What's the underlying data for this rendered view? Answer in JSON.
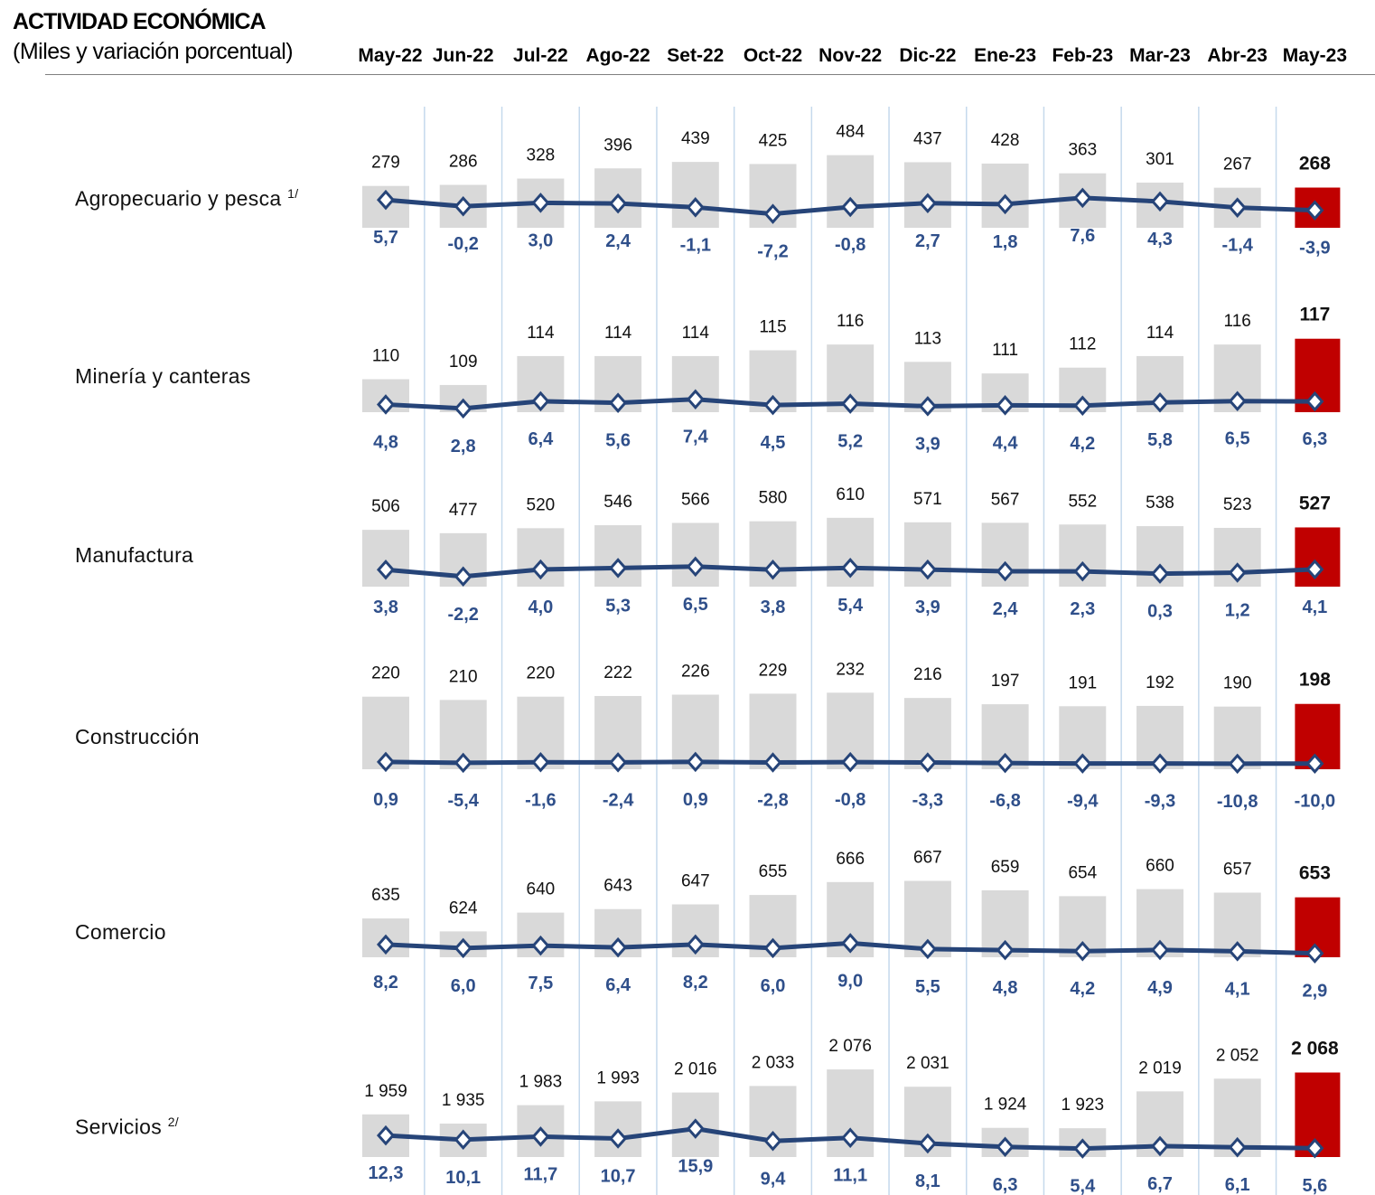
{
  "header": {
    "title": "ACTIVIDAD ECONÓMICA",
    "subtitle": "(Miles y variación porcentual)"
  },
  "chart_data": {
    "type": "bar+line",
    "title": "ACTIVIDAD ECONÓMICA",
    "subtitle": "(Miles y variación porcentual)",
    "categories": [
      "May-22",
      "Jun-22",
      "Jul-22",
      "Ago-22",
      "Set-22",
      "Oct-22",
      "Nov-22",
      "Dic-22",
      "Ene-23",
      "Feb-23",
      "Mar-23",
      "Abr-23",
      "May-23"
    ],
    "highlight_category": "May-23",
    "colors": {
      "bar": "#d9d9d9",
      "highlight_bar": "#c00000",
      "line": "#264478",
      "label_pct": "#2f4f8a",
      "grid": "#c5d9ec"
    },
    "series": [
      {
        "name": "Agropecuario y pesca",
        "note": "1/",
        "values": [
          279,
          286,
          328,
          396,
          439,
          425,
          484,
          437,
          428,
          363,
          301,
          267,
          268
        ],
        "values_label": [
          "279",
          "286",
          "328",
          "396",
          "439",
          "425",
          "484",
          "437",
          "428",
          "363",
          "301",
          "267",
          "268"
        ],
        "pct": [
          5.7,
          -0.2,
          3.0,
          2.4,
          -1.1,
          -7.2,
          -0.8,
          2.7,
          1.8,
          7.6,
          4.3,
          -1.4,
          -3.9
        ],
        "pct_label": [
          "5,7",
          "-0,2",
          "3,0",
          "2,4",
          "-1,1",
          "-7,2",
          "-0,8",
          "2,7",
          "1,8",
          "7,6",
          "4,3",
          "-1,4",
          "-3,9"
        ]
      },
      {
        "name": "Minería y canteras",
        "note": "",
        "values": [
          110,
          109,
          114,
          114,
          114,
          115,
          116,
          113,
          111,
          112,
          114,
          116,
          117
        ],
        "values_label": [
          "110",
          "109",
          "114",
          "114",
          "114",
          "115",
          "116",
          "113",
          "111",
          "112",
          "114",
          "116",
          "117"
        ],
        "pct": [
          4.8,
          2.8,
          6.4,
          5.6,
          7.4,
          4.5,
          5.2,
          3.9,
          4.4,
          4.2,
          5.8,
          6.5,
          6.3
        ],
        "pct_label": [
          "4,8",
          "2,8",
          "6,4",
          "5,6",
          "7,4",
          "4,5",
          "5,2",
          "3,9",
          "4,4",
          "4,2",
          "5,8",
          "6,5",
          "6,3"
        ]
      },
      {
        "name": "Manufactura",
        "note": "",
        "values": [
          506,
          477,
          520,
          546,
          566,
          580,
          610,
          571,
          567,
          552,
          538,
          523,
          527
        ],
        "values_label": [
          "506",
          "477",
          "520",
          "546",
          "566",
          "580",
          "610",
          "571",
          "567",
          "552",
          "538",
          "523",
          "527"
        ],
        "pct": [
          3.8,
          -2.2,
          4.0,
          5.3,
          6.5,
          3.8,
          5.4,
          3.9,
          2.4,
          2.3,
          0.3,
          1.2,
          4.1
        ],
        "pct_label": [
          "3,8",
          "-2,2",
          "4,0",
          "5,3",
          "6,5",
          "3,8",
          "5,4",
          "3,9",
          "2,4",
          "2,3",
          "0,3",
          "1,2",
          "4,1"
        ]
      },
      {
        "name": "Construcción",
        "note": "",
        "values": [
          220,
          210,
          220,
          222,
          226,
          229,
          232,
          216,
          197,
          191,
          192,
          190,
          198
        ],
        "values_label": [
          "220",
          "210",
          "220",
          "222",
          "226",
          "229",
          "232",
          "216",
          "197",
          "191",
          "192",
          "190",
          "198"
        ],
        "pct": [
          0.9,
          -5.4,
          -1.6,
          -2.4,
          0.9,
          -2.8,
          -0.8,
          -3.3,
          -6.8,
          -9.4,
          -9.3,
          -10.8,
          -10.0
        ],
        "pct_label": [
          "0,9",
          "-5,4",
          "-1,6",
          "-2,4",
          "0,9",
          "-2,8",
          "-0,8",
          "-3,3",
          "-6,8",
          "-9,4",
          "-9,3",
          "-10,8",
          "-10,0"
        ]
      },
      {
        "name": "Comercio",
        "note": "",
        "values": [
          635,
          624,
          640,
          643,
          647,
          655,
          666,
          667,
          659,
          654,
          660,
          657,
          653
        ],
        "values_label": [
          "635",
          "624",
          "640",
          "643",
          "647",
          "655",
          "666",
          "667",
          "659",
          "654",
          "660",
          "657",
          "653"
        ],
        "pct": [
          8.2,
          6.0,
          7.5,
          6.4,
          8.2,
          6.0,
          9.0,
          5.5,
          4.8,
          4.2,
          4.9,
          4.1,
          2.9
        ],
        "pct_label": [
          "8,2",
          "6,0",
          "7,5",
          "6,4",
          "8,2",
          "6,0",
          "9,0",
          "5,5",
          "4,8",
          "4,2",
          "4,9",
          "4,1",
          "2,9"
        ]
      },
      {
        "name": "Servicios",
        "note": "2/",
        "values": [
          1959,
          1935,
          1983,
          1993,
          2016,
          2033,
          2076,
          2031,
          1924,
          1923,
          2019,
          2052,
          2068
        ],
        "values_label": [
          "1 959",
          "1 935",
          "1 983",
          "1 993",
          "2 016",
          "2 033",
          "2 076",
          "2 031",
          "1 924",
          "1 923",
          "2 019",
          "2 052",
          "2 068"
        ],
        "pct": [
          12.3,
          10.1,
          11.7,
          10.7,
          15.9,
          9.4,
          11.1,
          8.1,
          6.3,
          5.4,
          6.7,
          6.1,
          5.6
        ],
        "pct_label": [
          "12,3",
          "10,1",
          "11,7",
          "10,7",
          "15,9",
          "9,4",
          "11,1",
          "8,1",
          "6,3",
          "5,4",
          "6,7",
          "6,1",
          "5,6"
        ]
      }
    ]
  }
}
